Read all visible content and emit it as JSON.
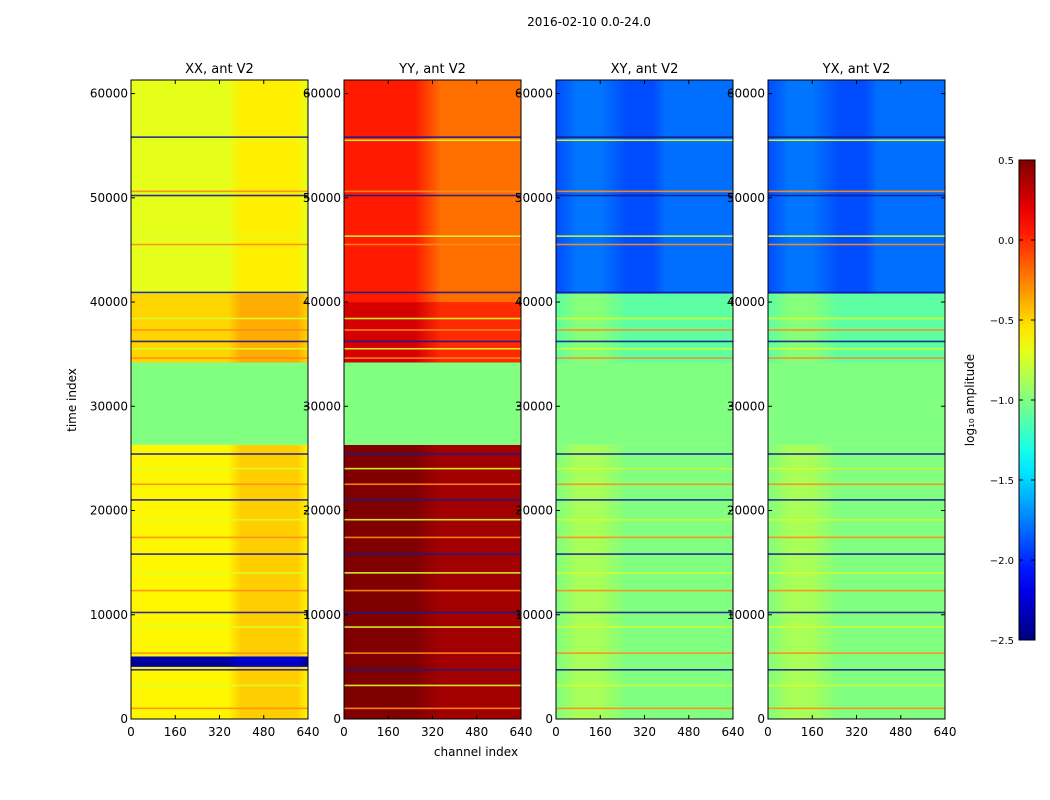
{
  "chart_data": {
    "type": "heatmap",
    "suptitle": "2016-02-10 0.0-24.0",
    "xlabel": "channel index",
    "ylabel": "time index",
    "xticks": [
      0,
      160,
      320,
      480,
      640
    ],
    "yticks": [
      0,
      10000,
      20000,
      30000,
      40000,
      50000,
      60000
    ],
    "xlim": [
      0,
      640
    ],
    "ylim": [
      0,
      61300
    ],
    "colorbar": {
      "label": "log₁₀ amplitude",
      "ticks": [
        0.5,
        0.0,
        -0.5,
        -1.0,
        -1.5,
        -2.0,
        -2.5
      ],
      "tick_labels": [
        "0.5",
        "0.0",
        "−0.5",
        "−1.0",
        "−1.5",
        "−2.0",
        "−2.5"
      ],
      "range": [
        -2.5,
        0.5
      ],
      "colormap": "jet"
    },
    "panels": [
      {
        "title": "XX, ant V2",
        "regions": [
          {
            "t0": 0,
            "t1": 5000,
            "value": -0.6
          },
          {
            "t0": 5000,
            "t1": 6000,
            "value": -2.4
          },
          {
            "t0": 6000,
            "t1": 26300,
            "value": -0.6
          },
          {
            "t0": 26300,
            "t1": 34200,
            "value": -1.0
          },
          {
            "t0": 34200,
            "t1": 40800,
            "value": -0.5
          },
          {
            "t0": 40800,
            "t1": 61300,
            "value": -0.7
          }
        ],
        "bright_channels": [
          390,
          630
        ]
      },
      {
        "title": "YY, ant V2",
        "regions": [
          {
            "t0": 0,
            "t1": 26300,
            "value": 0.4
          },
          {
            "t0": 26300,
            "t1": 34200,
            "value": -1.0
          },
          {
            "t0": 34200,
            "t1": 40000,
            "value": 0.0
          },
          {
            "t0": 40000,
            "t1": 61300,
            "value": -0.2
          }
        ],
        "bright_channels": [
          0,
          320
        ]
      },
      {
        "title": "XY, ant V2",
        "regions": [
          {
            "t0": 0,
            "t1": 26300,
            "value": -1.0
          },
          {
            "t0": 26300,
            "t1": 34200,
            "value": -1.0
          },
          {
            "t0": 34200,
            "t1": 40800,
            "value": -1.1
          },
          {
            "t0": 40800,
            "t1": 61300,
            "value": -1.9
          }
        ],
        "bright_channels": [
          60,
          240
        ]
      },
      {
        "title": "YX, ant V2",
        "regions": [
          {
            "t0": 0,
            "t1": 26300,
            "value": -1.0
          },
          {
            "t0": 26300,
            "t1": 34200,
            "value": -1.0
          },
          {
            "t0": 34200,
            "t1": 40800,
            "value": -1.1
          },
          {
            "t0": 40800,
            "t1": 61300,
            "value": -1.9
          }
        ],
        "bright_channels": [
          60,
          240
        ]
      }
    ],
    "flag_rows": [
      1000,
      3200,
      4700,
      6300,
      8800,
      10200,
      12300,
      14000,
      15800,
      17400,
      19100,
      21000,
      22500,
      24000,
      25400,
      34600,
      35500,
      36200,
      37300,
      38400,
      40900,
      45500,
      46300,
      50200,
      50600,
      55500,
      55800
    ]
  }
}
